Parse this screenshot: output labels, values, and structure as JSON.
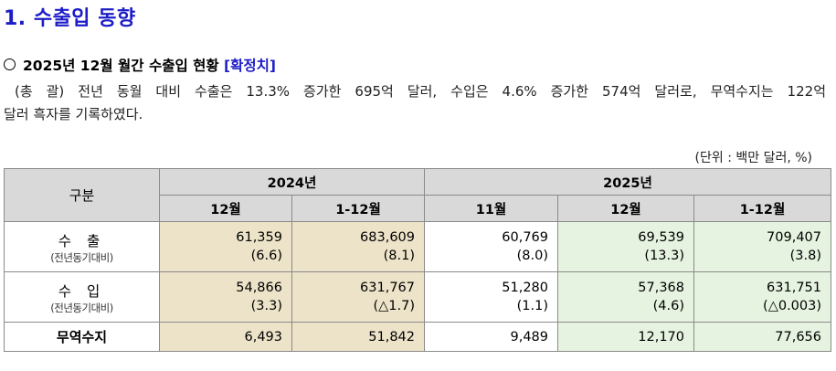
{
  "section_title": "1. 수출입 동향",
  "subsection": {
    "title": "2025년 12월 월간 수출입 현황",
    "tag": "[확정치]"
  },
  "summary_line1": "(총 괄) 전년 동월 대비 수출은 13.3% 증가한 695억 달러, 수입은 4.6% 증가한 574억 달러로, 무역수지는 122억",
  "summary_line2": "달러 흑자를 기록하였다.",
  "unit_note": "(단위 : 백만 달러, %)",
  "table": {
    "header_category": "구분",
    "year_2024": "2024년",
    "year_2025": "2025년",
    "columns": [
      "12월",
      "1-12월",
      "11월",
      "12월",
      "1-12월"
    ],
    "rows": [
      {
        "label": "수 출",
        "sublabel": "(전년동기대비)",
        "values": [
          "61,359",
          "683,609",
          "60,769",
          "69,539",
          "709,407"
        ],
        "changes": [
          "(6.6)",
          "(8.1)",
          "(8.0)",
          "(13.3)",
          "(3.8)"
        ]
      },
      {
        "label": "수 입",
        "sublabel": "(전년동기대비)",
        "values": [
          "54,866",
          "631,767",
          "51,280",
          "57,368",
          "631,751"
        ],
        "changes": [
          "(3.3)",
          "(△1.7)",
          "(1.1)",
          "(4.6)",
          "(△0.003)"
        ]
      },
      {
        "label": "무역수지",
        "values": [
          "6,493",
          "51,842",
          "9,489",
          "12,170",
          "77,656"
        ]
      }
    ]
  },
  "colors": {
    "title_blue": "#1d1dc8",
    "header_gray": "#d9d9d9",
    "col_2024_tan": "#ede3c9",
    "col_2025_mint": "#e6f3e0"
  }
}
